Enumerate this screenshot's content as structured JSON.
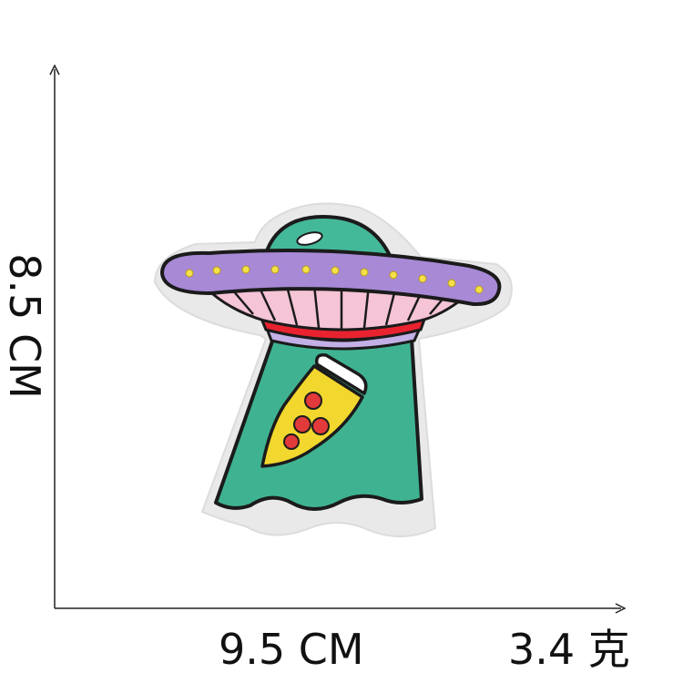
{
  "dimensions": {
    "height_label": "8.5 CM",
    "width_label": "9.5 CM",
    "weight_label": "3.4 克"
  },
  "product": {
    "icons": [
      "ufo-icon",
      "pizza-slice-icon",
      "tractor-beam-icon"
    ]
  },
  "colors": {
    "dome": "#44b99a",
    "saucer": "#a789d6",
    "stripes": "#f5c4d6",
    "rim": "#e8232f",
    "beam": "#3fb391",
    "pizza": "#f2d72e",
    "pepperoni": "#e23a3a",
    "lights": "#f4e04a",
    "border": "#e9e9e9",
    "outline": "#1b1b1b"
  }
}
